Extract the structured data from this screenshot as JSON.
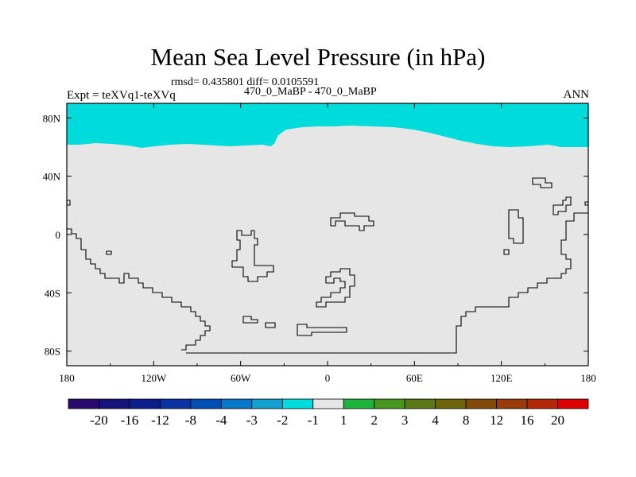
{
  "title": "Mean Sea Level Pressure (in hPa)",
  "stats": "rmsd= 0.435801 diff= 0.0105591",
  "run_label": "470_0_MaBP - 470_0_MaBP",
  "experiment": "Expt = teXVq1-teXVq",
  "season": "ANN",
  "map": {
    "lat_range": [
      -90,
      90
    ],
    "lon_range": [
      -180,
      180
    ],
    "field_description_colors": {
      "background_class": "-1 to 1",
      "northern_band_class": "-2 to -1"
    },
    "ocean_fill": "#e6e6e6",
    "band_fill": "#00dcdc",
    "coastline_color": "#000000"
  },
  "chart_data": {
    "type": "heatmap",
    "title": "Mean Sea Level Pressure (in hPa)",
    "x_ticks": [
      "180",
      "120W",
      "60W",
      "0",
      "60E",
      "120E",
      "180"
    ],
    "y_ticks": [
      "80N",
      "40N",
      "0",
      "40S",
      "80S"
    ],
    "xlim": [
      -180,
      180
    ],
    "ylim": [
      -90,
      90
    ],
    "colorbar": {
      "labels": [
        "-20",
        "-16",
        "-12",
        "-8",
        "-4",
        "-3",
        "-2",
        "-1",
        "1",
        "2",
        "3",
        "4",
        "8",
        "12",
        "16",
        "20"
      ],
      "colors": [
        "#2a0a6e",
        "#14147a",
        "#0a1e8c",
        "#0a32a0",
        "#0050b4",
        "#0a78c8",
        "#14a0d2",
        "#00dcdc",
        "#e6e6e6",
        "#1eb43c",
        "#46961e",
        "#5a7814",
        "#6e640a",
        "#824a0a",
        "#9a3c0a",
        "#b4280a",
        "#dc0000"
      ]
    },
    "regions": [
      {
        "range": "-2 to -1",
        "extent": "north of about 60N"
      },
      {
        "range": "-1 to 1",
        "extent": "rest of domain"
      }
    ]
  }
}
